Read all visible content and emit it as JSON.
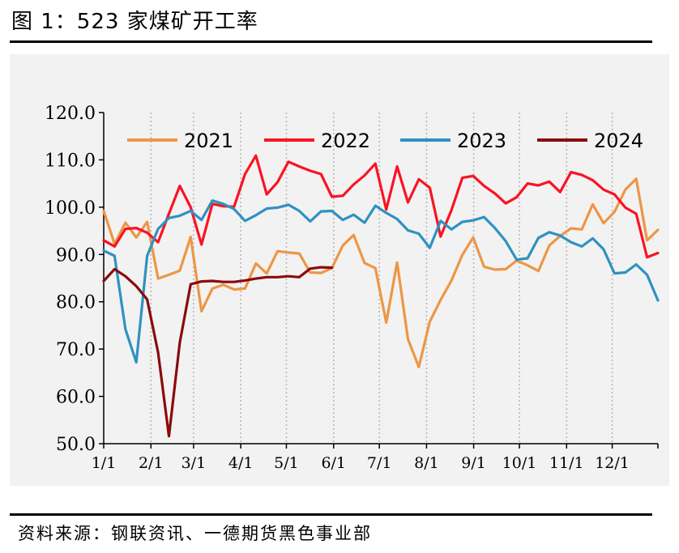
{
  "title": "图 1：523 家煤矿开工率",
  "source": "资料来源：钢联资讯、一德期货黑色事业部",
  "chart_data": {
    "type": "line",
    "title": "",
    "xlabel": "",
    "ylabel": "",
    "ylim": [
      50,
      120
    ],
    "y_ticks": [
      "50.0",
      "60.0",
      "70.0",
      "80.0",
      "90.0",
      "100.0",
      "110.0",
      "120.0"
    ],
    "x_ticks": [
      "1/1",
      "2/1",
      "3/1",
      "4/1",
      "5/1",
      "6/1",
      "7/1",
      "8/1",
      "9/1",
      "10/1",
      "11/1",
      "12/1"
    ],
    "x_unit": "week of year",
    "grid": "vertical dotted at month starts",
    "legend_position": "top",
    "series": [
      {
        "name": "2021",
        "color": "#ed9645",
        "values": [
          99.2,
          92.2,
          96.7,
          93.6,
          96.9,
          84.9,
          85.7,
          86.6,
          93.7,
          78.0,
          82.8,
          83.6,
          82.6,
          82.8,
          88.1,
          86.0,
          90.7,
          90.4,
          90.2,
          86.2,
          86.1,
          87.1,
          91.9,
          94.1,
          88.2,
          87.1,
          75.6,
          88.3,
          72.1,
          66.2,
          75.8,
          80.4,
          84.5,
          89.9,
          93.6,
          87.4,
          86.8,
          86.9,
          88.7,
          87.7,
          86.5,
          91.9,
          93.9,
          95.5,
          95.3,
          100.6,
          96.6,
          99.0,
          103.7,
          106.0,
          93.0,
          95.2
        ]
      },
      {
        "name": "2022",
        "color": "#fa1323",
        "values": [
          93.0,
          91.7,
          95.4,
          95.6,
          94.6,
          92.6,
          98.6,
          104.5,
          100.0,
          92.1,
          100.7,
          100.2,
          100.1,
          107.0,
          110.9,
          102.7,
          105.3,
          109.6,
          108.6,
          107.7,
          107.0,
          102.2,
          102.4,
          104.8,
          106.7,
          109.2,
          99.5,
          108.6,
          101.0,
          105.9,
          104.1,
          93.8,
          99.4,
          106.2,
          106.6,
          104.5,
          102.9,
          100.8,
          102.1,
          105.0,
          104.6,
          105.4,
          103.2,
          107.4,
          106.8,
          105.7,
          103.7,
          102.7,
          99.9,
          98.6,
          89.4,
          90.3
        ]
      },
      {
        "name": "2023",
        "color": "#2e92c1",
        "values": [
          90.8,
          89.7,
          74.2,
          67.2,
          89.7,
          95.4,
          97.7,
          98.2,
          99.2,
          97.3,
          101.4,
          100.7,
          99.6,
          97.1,
          98.3,
          99.7,
          99.9,
          100.5,
          99.2,
          97.0,
          99.1,
          99.2,
          97.3,
          98.4,
          96.7,
          100.3,
          98.8,
          97.5,
          95.1,
          94.4,
          91.4,
          97.1,
          95.3,
          96.9,
          97.2,
          97.9,
          95.6,
          92.8,
          88.9,
          89.2,
          93.5,
          94.7,
          94.0,
          92.6,
          91.7,
          93.4,
          91.1,
          86.0,
          86.2,
          87.9,
          85.7,
          80.3
        ]
      },
      {
        "name": "2024",
        "color": "#8a0a0c",
        "values": [
          84.4,
          86.9,
          85.4,
          83.3,
          80.5,
          69.3,
          51.6,
          71.4,
          83.7,
          84.3,
          84.4,
          84.2,
          84.2,
          84.5,
          84.9,
          85.2,
          85.2,
          85.4,
          85.2,
          87.0,
          87.3,
          87.2
        ]
      }
    ]
  }
}
